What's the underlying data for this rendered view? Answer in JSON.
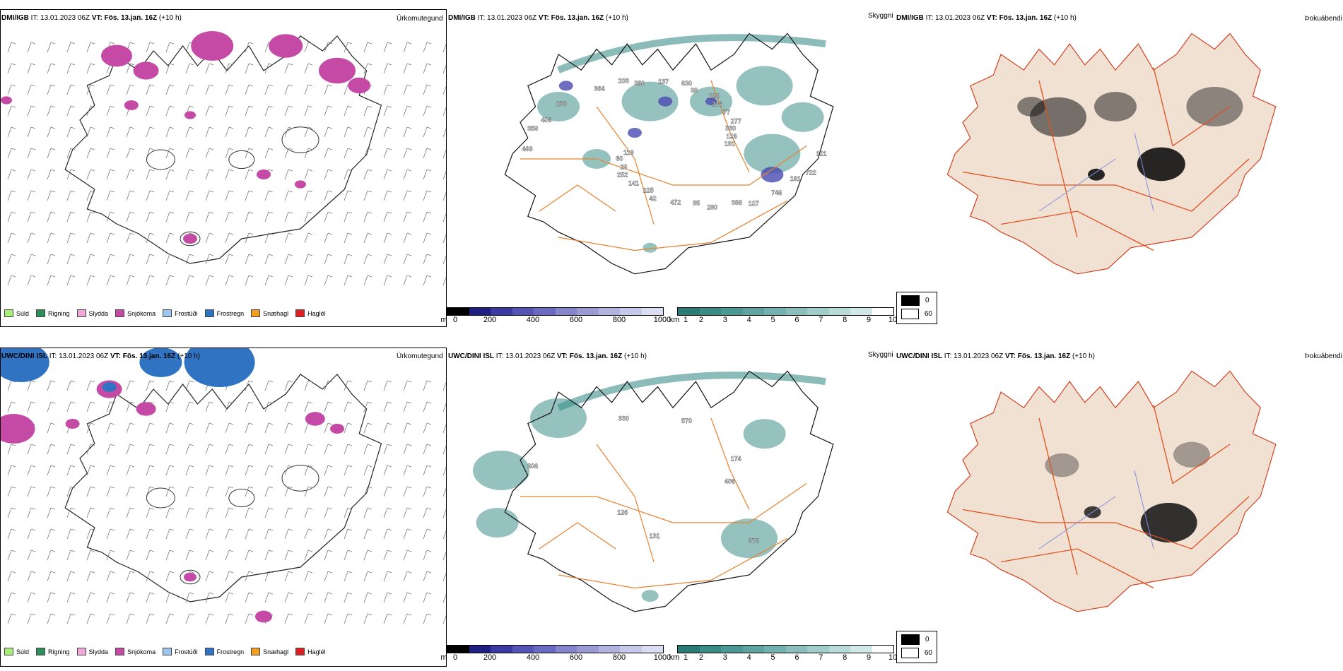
{
  "colors": {
    "snow": "#c44aa6",
    "freezing_rain": "#2f73c2",
    "cloud_teal": "#3e8f8a",
    "low_cloud": "#4a4ab0",
    "roads": "#e6822e",
    "rivers": "#7f8fe0",
    "land_fog": "#f1e1d3"
  },
  "legend_precip": [
    {
      "label": "Súld",
      "color": "#a6f07a"
    },
    {
      "label": "Rigning",
      "color": "#2f8f5a"
    },
    {
      "label": "Slydda",
      "color": "#f2a8d8"
    },
    {
      "label": "Snjókoma",
      "color": "#c44aa6"
    },
    {
      "label": "Frostúði",
      "color": "#9cc6f0"
    },
    {
      "label": "Frostregn",
      "color": "#2f73c2"
    },
    {
      "label": "Snæhagl",
      "color": "#f0a020"
    },
    {
      "label": "Haglél",
      "color": "#e02020"
    }
  ],
  "cloud_base_bar": {
    "unit": "m",
    "ticks": [
      "0",
      "200",
      "400",
      "600",
      "800",
      "1000"
    ],
    "colors": [
      "#000000",
      "#1f1f80",
      "#3a3aa0",
      "#5555b5",
      "#6a6ac0",
      "#8585cc",
      "#9a9ad5",
      "#b3b3e0",
      "#c8c8ea",
      "#dcdcf2"
    ]
  },
  "visibility_bar": {
    "unit": "km",
    "ticks": [
      "1",
      "2",
      "3",
      "4",
      "5",
      "6",
      "7",
      "8",
      "9",
      "10"
    ],
    "colors": [
      "#2a7a76",
      "#3a8a86",
      "#4a9793",
      "#5ea3a0",
      "#74b1ae",
      "#8abfbc",
      "#a0cdca",
      "#b8dbd9",
      "#d0e9e7",
      "#ffffff"
    ]
  },
  "fog_legend": [
    {
      "label": "0",
      "color": "#000000"
    },
    {
      "label": "60",
      "color": "#ffffff"
    }
  ],
  "rows": [
    {
      "model": "DMI/IGB",
      "it_label": "IT:",
      "it_value": "13.01.2023 06Z",
      "vt_label": "VT: Fös. 13.jan. 16Z",
      "lead": "(+10 h)",
      "p1_type": "Úrkomutegund",
      "p2_type": "Skyggni",
      "p3_type": "Þokuábendi",
      "cloud_labels": [
        "191",
        "252",
        "630",
        "127",
        "358",
        "277",
        "42",
        "203",
        "722",
        "60",
        "204",
        "280",
        "230",
        "126",
        "141",
        "137",
        "746",
        "469",
        "77",
        "472",
        "364",
        "121",
        "29",
        "38",
        "388",
        "406",
        "330",
        "225",
        "350",
        "161",
        "118",
        "236",
        "85"
      ]
    },
    {
      "model": "UWC/DINI ISL",
      "it_label": "IT:",
      "it_value": "13.01.2023 06Z",
      "vt_label": "VT: Fös. 13.jan. 16Z",
      "lead": "(+10 h)",
      "p1_type": "Úrkomutegund",
      "p2_type": "Skyggni",
      "p3_type": "Þokuábendi",
      "cloud_labels": [
        "406",
        "126",
        "570",
        "376",
        "306",
        "174",
        "131",
        "330"
      ]
    }
  ]
}
